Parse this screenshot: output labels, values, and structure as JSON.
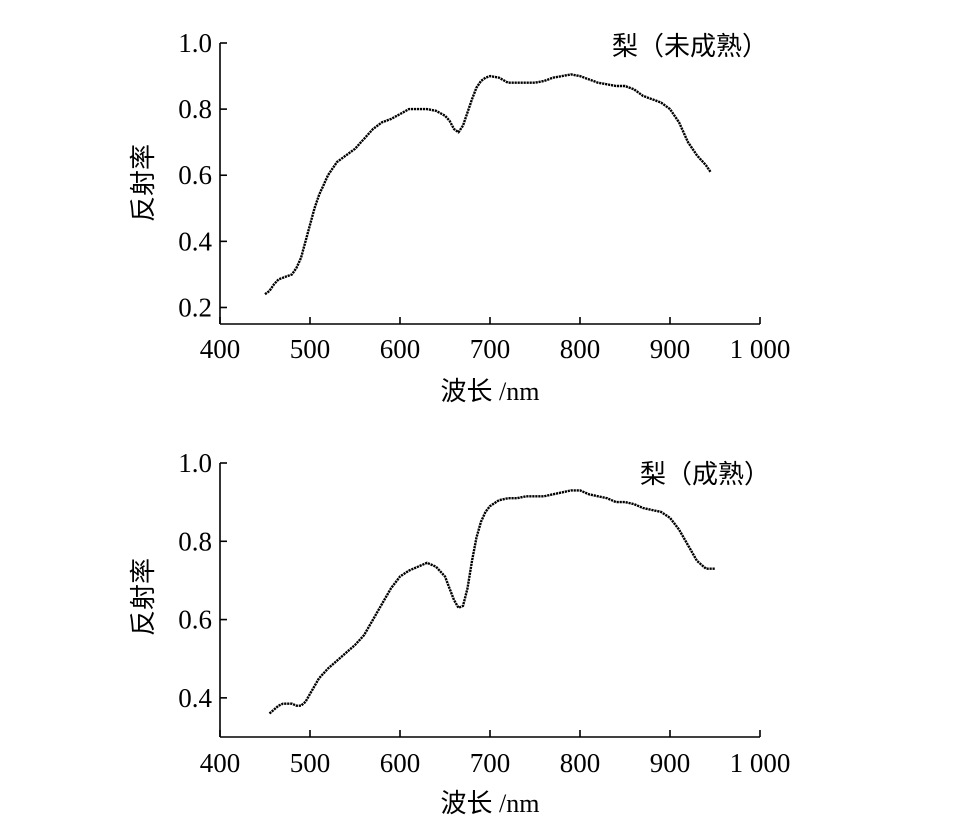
{
  "chart_data": [
    {
      "type": "line",
      "title": "梨（未成熟）",
      "xlabel": "波长 /nm",
      "ylabel": "反射率",
      "xlim": [
        400,
        1000
      ],
      "ylim": [
        0.15,
        1.0
      ],
      "x_ticks": [
        400,
        500,
        600,
        700,
        800,
        900,
        1000
      ],
      "x_tick_labels": [
        "400",
        "500",
        "600",
        "700",
        "800",
        "900",
        "1 000"
      ],
      "y_ticks": [
        0.2,
        0.4,
        0.6,
        0.8,
        1.0
      ],
      "y_tick_labels": [
        "0.2",
        "0.4",
        "0.6",
        "0.8",
        "1.0"
      ],
      "grid": false,
      "series": [
        {
          "x": [
            450,
            455,
            460,
            465,
            470,
            475,
            480,
            485,
            490,
            495,
            500,
            505,
            510,
            515,
            520,
            525,
            530,
            540,
            550,
            560,
            570,
            580,
            590,
            600,
            610,
            620,
            630,
            640,
            650,
            655,
            660,
            665,
            670,
            675,
            680,
            685,
            690,
            695,
            700,
            710,
            720,
            730,
            740,
            750,
            760,
            770,
            780,
            790,
            800,
            810,
            820,
            830,
            840,
            850,
            860,
            870,
            880,
            890,
            900,
            910,
            920,
            930,
            940,
            945
          ],
          "values": [
            0.24,
            0.25,
            0.27,
            0.285,
            0.29,
            0.295,
            0.3,
            0.32,
            0.35,
            0.4,
            0.45,
            0.5,
            0.54,
            0.57,
            0.6,
            0.62,
            0.64,
            0.66,
            0.68,
            0.71,
            0.74,
            0.76,
            0.77,
            0.785,
            0.8,
            0.8,
            0.8,
            0.795,
            0.78,
            0.765,
            0.74,
            0.73,
            0.75,
            0.79,
            0.83,
            0.865,
            0.885,
            0.895,
            0.9,
            0.895,
            0.88,
            0.88,
            0.88,
            0.88,
            0.885,
            0.895,
            0.9,
            0.905,
            0.9,
            0.89,
            0.88,
            0.875,
            0.87,
            0.87,
            0.86,
            0.84,
            0.83,
            0.82,
            0.8,
            0.76,
            0.7,
            0.66,
            0.63,
            0.61
          ]
        }
      ]
    },
    {
      "type": "line",
      "title": "梨（成熟）",
      "xlabel": "波长 /nm",
      "ylabel": "反射率",
      "xlim": [
        400,
        1000
      ],
      "ylim": [
        0.3,
        1.0
      ],
      "x_ticks": [
        400,
        500,
        600,
        700,
        800,
        900,
        1000
      ],
      "x_tick_labels": [
        "400",
        "500",
        "600",
        "700",
        "800",
        "900",
        "1 000"
      ],
      "y_ticks": [
        0.4,
        0.6,
        0.8,
        1.0
      ],
      "y_tick_labels": [
        "0.4",
        "0.6",
        "0.8",
        "1.0"
      ],
      "grid": false,
      "series": [
        {
          "x": [
            455,
            460,
            465,
            470,
            475,
            480,
            485,
            490,
            495,
            500,
            505,
            510,
            520,
            530,
            540,
            550,
            560,
            570,
            580,
            590,
            600,
            610,
            620,
            630,
            640,
            650,
            655,
            660,
            665,
            670,
            675,
            680,
            685,
            690,
            695,
            700,
            710,
            720,
            730,
            740,
            750,
            760,
            770,
            780,
            790,
            800,
            810,
            820,
            830,
            840,
            850,
            860,
            870,
            880,
            890,
            900,
            910,
            920,
            930,
            940,
            950
          ],
          "values": [
            0.36,
            0.37,
            0.38,
            0.385,
            0.385,
            0.385,
            0.38,
            0.38,
            0.39,
            0.41,
            0.43,
            0.45,
            0.475,
            0.495,
            0.515,
            0.535,
            0.56,
            0.6,
            0.64,
            0.68,
            0.71,
            0.725,
            0.735,
            0.745,
            0.735,
            0.71,
            0.68,
            0.65,
            0.63,
            0.635,
            0.68,
            0.75,
            0.81,
            0.85,
            0.875,
            0.89,
            0.905,
            0.91,
            0.91,
            0.915,
            0.915,
            0.915,
            0.92,
            0.925,
            0.93,
            0.93,
            0.92,
            0.915,
            0.91,
            0.9,
            0.9,
            0.895,
            0.885,
            0.88,
            0.875,
            0.86,
            0.83,
            0.79,
            0.75,
            0.73,
            0.73
          ]
        }
      ]
    }
  ]
}
